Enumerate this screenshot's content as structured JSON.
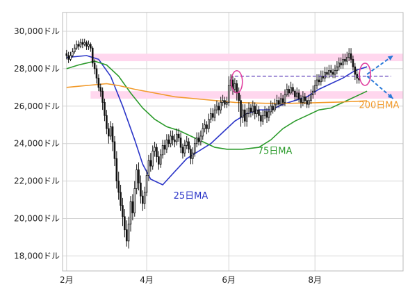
{
  "chart_data": {
    "type": "candlestick",
    "y_unit": "ドル",
    "ylim": [
      17200,
      31000
    ],
    "y_ticks": [
      {
        "value": 18000,
        "label": "18,000ドル"
      },
      {
        "value": 20000,
        "label": "20,000ドル"
      },
      {
        "value": 22000,
        "label": "22,000ドル"
      },
      {
        "value": 24000,
        "label": "24,000ドル"
      },
      {
        "value": 26000,
        "label": "26,000ドル"
      },
      {
        "value": 28000,
        "label": "28,000ドル"
      },
      {
        "value": 30000,
        "label": "30,000ドル"
      }
    ],
    "x_ticks": [
      {
        "index": 0,
        "label": "2月"
      },
      {
        "index": 40,
        "label": "4月"
      },
      {
        "index": 81,
        "label": "6月"
      },
      {
        "index": 124,
        "label": "8月"
      }
    ],
    "x_range": [
      -2,
      168
    ],
    "grid": true,
    "moving_averages": [
      {
        "name": "25日MA",
        "color": "#2b35c8",
        "points": [
          [
            0,
            28600
          ],
          [
            10,
            28700
          ],
          [
            16,
            28500
          ],
          [
            22,
            27600
          ],
          [
            28,
            26000
          ],
          [
            34,
            24200
          ],
          [
            38,
            22900
          ],
          [
            42,
            22100
          ],
          [
            48,
            21800
          ],
          [
            54,
            22500
          ],
          [
            60,
            23200
          ],
          [
            66,
            23600
          ],
          [
            72,
            24000
          ],
          [
            78,
            24600
          ],
          [
            84,
            25200
          ],
          [
            90,
            25600
          ],
          [
            96,
            25800
          ],
          [
            102,
            25800
          ],
          [
            108,
            26100
          ],
          [
            114,
            26300
          ],
          [
            120,
            26500
          ],
          [
            126,
            26900
          ],
          [
            132,
            27200
          ],
          [
            138,
            27500
          ],
          [
            144,
            27900
          ],
          [
            150,
            28100
          ]
        ]
      },
      {
        "name": "75日MA",
        "color": "#2a9a2a",
        "points": [
          [
            0,
            28000
          ],
          [
            6,
            28200
          ],
          [
            14,
            28400
          ],
          [
            20,
            28200
          ],
          [
            26,
            27600
          ],
          [
            32,
            26700
          ],
          [
            38,
            25900
          ],
          [
            44,
            25300
          ],
          [
            50,
            24900
          ],
          [
            56,
            24700
          ],
          [
            62,
            24400
          ],
          [
            68,
            24100
          ],
          [
            74,
            23800
          ],
          [
            80,
            23700
          ],
          [
            88,
            23700
          ],
          [
            96,
            23800
          ],
          [
            102,
            24200
          ],
          [
            108,
            24800
          ],
          [
            114,
            25200
          ],
          [
            120,
            25500
          ],
          [
            126,
            25800
          ],
          [
            132,
            25900
          ],
          [
            138,
            26200
          ],
          [
            144,
            26500
          ],
          [
            150,
            26800
          ]
        ]
      },
      {
        "name": "200日MA",
        "color": "#f29a2a",
        "points": [
          [
            0,
            27000
          ],
          [
            10,
            27100
          ],
          [
            20,
            27200
          ],
          [
            26,
            27100
          ],
          [
            34,
            26900
          ],
          [
            44,
            26700
          ],
          [
            54,
            26500
          ],
          [
            64,
            26400
          ],
          [
            74,
            26300
          ],
          [
            84,
            26200
          ],
          [
            100,
            26150
          ],
          [
            112,
            26150
          ],
          [
            124,
            26180
          ],
          [
            136,
            26220
          ],
          [
            150,
            26280
          ]
        ]
      }
    ],
    "ma_labels": [
      {
        "text": "25日MA",
        "color": "#2b35c8",
        "index": 62,
        "value": 21050
      },
      {
        "text": "75日MA",
        "color": "#2a9a2a",
        "index": 104,
        "value": 23450
      },
      {
        "text": "200日MA",
        "color": "#f29a2a",
        "index": 156,
        "value": 25900
      }
    ],
    "resistance_band": {
      "from": 28400,
      "to": 28800,
      "color": "#ffd7ee"
    },
    "support_band": {
      "from": 26400,
      "to": 26800,
      "color": "#ffd7ee"
    },
    "dashed_line": {
      "value": 27600,
      "from_index": 84,
      "to_index": 162,
      "color": "#5a3ab8"
    },
    "highlight_ellipses": [
      {
        "center_index": 85,
        "center_value": 27300,
        "color": "#e040a0"
      },
      {
        "center_index": 149,
        "center_value": 27700,
        "color": "#e040a0"
      }
    ],
    "projection_arrows": [
      {
        "from_index": 150,
        "from_value": 27700,
        "to_index": 163,
        "to_value": 28700,
        "color": "#2a7ad8"
      },
      {
        "from_index": 150,
        "from_value": 27600,
        "to_index": 163,
        "to_value": 26400,
        "color": "#2a7ad8"
      }
    ],
    "candles": [
      [
        28800,
        28700,
        29000,
        28500
      ],
      [
        28700,
        28500,
        28900,
        28300
      ],
      [
        28500,
        28700,
        28900,
        28400
      ],
      [
        28700,
        28900,
        29100,
        28600
      ],
      [
        28900,
        29100,
        29300,
        28800
      ],
      [
        29100,
        29300,
        29500,
        29000
      ],
      [
        29300,
        29200,
        29500,
        29000
      ],
      [
        29200,
        29400,
        29600,
        29100
      ],
      [
        29400,
        29300,
        29600,
        29100
      ],
      [
        29300,
        29400,
        29600,
        29200
      ],
      [
        29400,
        29200,
        29500,
        29000
      ],
      [
        29200,
        29300,
        29500,
        29000
      ],
      [
        29300,
        29100,
        29400,
        28900
      ],
      [
        29100,
        28300,
        29200,
        28100
      ],
      [
        28300,
        28000,
        28500,
        27700
      ],
      [
        28000,
        27500,
        28200,
        27200
      ],
      [
        27500,
        27000,
        27700,
        26800
      ],
      [
        27000,
        26800,
        27200,
        26500
      ],
      [
        26800,
        26200,
        27000,
        25800
      ],
      [
        26200,
        25500,
        26400,
        25200
      ],
      [
        25500,
        24800,
        25800,
        24500
      ],
      [
        24800,
        24400,
        25100,
        24000
      ],
      [
        24400,
        24900,
        25200,
        24200
      ],
      [
        24900,
        24100,
        25100,
        23600
      ],
      [
        24100,
        23200,
        24400,
        22800
      ],
      [
        23200,
        22000,
        23600,
        21600
      ],
      [
        22000,
        21400,
        22500,
        21000
      ],
      [
        21400,
        20700,
        21800,
        20400
      ],
      [
        20700,
        20100,
        21100,
        19600
      ],
      [
        20100,
        19400,
        20500,
        19000
      ],
      [
        19400,
        18800,
        19900,
        18500
      ],
      [
        18800,
        19700,
        20100,
        18400
      ],
      [
        19700,
        20900,
        21200,
        19300
      ],
      [
        20900,
        20300,
        21300,
        19900
      ],
      [
        20300,
        21600,
        22000,
        20100
      ],
      [
        21600,
        22600,
        22900,
        21300
      ],
      [
        22600,
        21900,
        23000,
        21500
      ],
      [
        21900,
        21200,
        22300,
        20800
      ],
      [
        21200,
        20800,
        21500,
        20400
      ],
      [
        20800,
        21400,
        21700,
        20500
      ],
      [
        21400,
        22300,
        22600,
        21200
      ],
      [
        22300,
        23100,
        23400,
        22000
      ],
      [
        23100,
        22800,
        23500,
        22500
      ],
      [
        22800,
        23600,
        23900,
        22600
      ],
      [
        23600,
        23800,
        24100,
        23300
      ],
      [
        23800,
        23300,
        24000,
        23000
      ],
      [
        23300,
        22900,
        23600,
        22600
      ],
      [
        22900,
        23400,
        23700,
        22700
      ],
      [
        23400,
        23900,
        24200,
        23200
      ],
      [
        23900,
        23700,
        24200,
        23400
      ],
      [
        23700,
        24200,
        24500,
        23500
      ],
      [
        24200,
        24000,
        24500,
        23800
      ],
      [
        24000,
        24400,
        24700,
        23800
      ],
      [
        24400,
        24200,
        24700,
        23900
      ],
      [
        24200,
        24100,
        24500,
        23800
      ],
      [
        24100,
        24500,
        24800,
        23900
      ],
      [
        24500,
        24300,
        24800,
        24100
      ],
      [
        24300,
        23800,
        24600,
        23500
      ],
      [
        23800,
        23500,
        24000,
        23200
      ],
      [
        23500,
        23900,
        24200,
        23300
      ],
      [
        23900,
        24100,
        24400,
        23700
      ],
      [
        24100,
        23700,
        24300,
        23500
      ],
      [
        23700,
        23200,
        23900,
        22900
      ],
      [
        23200,
        23500,
        23800,
        22900
      ],
      [
        23500,
        24000,
        24300,
        23300
      ],
      [
        24000,
        24300,
        24600,
        23800
      ],
      [
        24300,
        24100,
        24600,
        23900
      ],
      [
        24100,
        24400,
        24700,
        23900
      ],
      [
        24400,
        24800,
        25100,
        24200
      ],
      [
        24800,
        25000,
        25300,
        24600
      ],
      [
        25000,
        24800,
        25200,
        24500
      ],
      [
        24800,
        25300,
        25600,
        24600
      ],
      [
        25300,
        25600,
        25900,
        25100
      ],
      [
        25600,
        25400,
        25900,
        25200
      ],
      [
        25400,
        25800,
        26100,
        25200
      ],
      [
        25800,
        26000,
        26300,
        25600
      ],
      [
        26000,
        25800,
        26200,
        25500
      ],
      [
        25800,
        26200,
        26500,
        25600
      ],
      [
        26200,
        26300,
        26600,
        26000
      ],
      [
        26300,
        26100,
        26500,
        25900
      ],
      [
        26100,
        26200,
        26500,
        25900
      ],
      [
        26200,
        27100,
        27600,
        26000
      ],
      [
        27100,
        27400,
        27700,
        26800
      ],
      [
        27400,
        26900,
        27600,
        26600
      ],
      [
        26900,
        27200,
        27500,
        26700
      ],
      [
        27200,
        26700,
        27400,
        26300
      ],
      [
        26700,
        26300,
        27000,
        25700
      ],
      [
        26300,
        25400,
        26600,
        24900
      ],
      [
        25400,
        25800,
        26100,
        25100
      ],
      [
        25800,
        25200,
        26100,
        24900
      ],
      [
        25200,
        25600,
        25900,
        24900
      ],
      [
        25600,
        25900,
        26200,
        25400
      ],
      [
        25900,
        25700,
        26100,
        25400
      ],
      [
        25700,
        26000,
        26300,
        25500
      ],
      [
        26000,
        25600,
        26200,
        25300
      ],
      [
        25600,
        25800,
        26100,
        25400
      ],
      [
        25800,
        25500,
        26000,
        25200
      ],
      [
        25500,
        25200,
        25700,
        24900
      ],
      [
        25200,
        25500,
        25800,
        25000
      ],
      [
        25500,
        25700,
        26000,
        25300
      ],
      [
        25700,
        25400,
        25900,
        25100
      ],
      [
        25400,
        25700,
        26000,
        25200
      ],
      [
        25700,
        26000,
        26300,
        25500
      ],
      [
        26000,
        25800,
        26200,
        25600
      ],
      [
        25800,
        26100,
        26400,
        25700
      ],
      [
        26100,
        26300,
        26600,
        25900
      ],
      [
        26300,
        26100,
        26500,
        25900
      ],
      [
        26100,
        26400,
        26700,
        26000
      ],
      [
        26400,
        26200,
        26600,
        26000
      ],
      [
        26200,
        26600,
        26900,
        26000
      ],
      [
        26600,
        26900,
        27200,
        26500
      ],
      [
        26900,
        26700,
        27100,
        26500
      ],
      [
        26700,
        27000,
        27300,
        26600
      ],
      [
        27000,
        26800,
        27200,
        26600
      ],
      [
        26800,
        26500,
        26900,
        26300
      ],
      [
        26500,
        26700,
        27000,
        26300
      ],
      [
        26700,
        26400,
        26900,
        26200
      ],
      [
        26400,
        26200,
        26600,
        25900
      ],
      [
        26200,
        26500,
        26800,
        26000
      ],
      [
        26500,
        26300,
        26700,
        26100
      ],
      [
        26300,
        26100,
        26500,
        25900
      ],
      [
        26100,
        26300,
        26600,
        25900
      ],
      [
        26300,
        26600,
        26900,
        26100
      ],
      [
        26600,
        26800,
        27100,
        26400
      ],
      [
        26800,
        27100,
        27400,
        26600
      ],
      [
        27100,
        27400,
        27700,
        26900
      ],
      [
        27400,
        27300,
        27700,
        27100
      ],
      [
        27300,
        27600,
        27900,
        27100
      ],
      [
        27600,
        27500,
        27900,
        27300
      ],
      [
        27500,
        27800,
        28100,
        27300
      ],
      [
        27800,
        27700,
        28100,
        27500
      ],
      [
        27700,
        27900,
        28200,
        27500
      ],
      [
        27900,
        27800,
        28200,
        27600
      ],
      [
        27800,
        27700,
        28000,
        27500
      ],
      [
        27700,
        27900,
        28200,
        27500
      ],
      [
        27900,
        28100,
        28400,
        27700
      ],
      [
        28100,
        28300,
        28600,
        27900
      ],
      [
        28300,
        28200,
        28600,
        28000
      ],
      [
        28200,
        28500,
        28800,
        28000
      ],
      [
        28500,
        28400,
        28800,
        28200
      ],
      [
        28400,
        28600,
        28900,
        28200
      ],
      [
        28600,
        28800,
        29100,
        28400
      ],
      [
        28800,
        28500,
        29100,
        28300
      ],
      [
        28500,
        28100,
        28700,
        27900
      ],
      [
        28100,
        27700,
        28300,
        27400
      ],
      [
        27700,
        27500,
        28000,
        27200
      ],
      [
        27500,
        27400,
        27800,
        27200
      ]
    ]
  }
}
